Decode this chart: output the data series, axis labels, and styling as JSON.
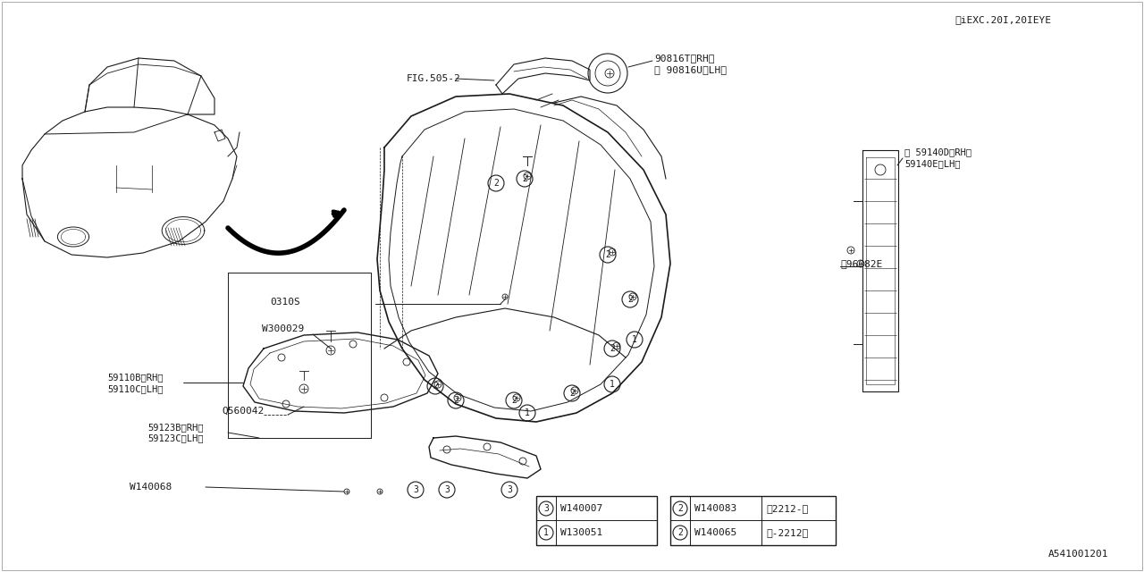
{
  "bg_color": "#ffffff",
  "line_color": "#1a1a1a",
  "corner_note": "※iEXC.20I,20IEYE",
  "part_id": "A541001201",
  "fig505_label": "FIG.505-2",
  "p90816T": "90816T〈RH〉",
  "p90816U": "※ 90816U〈LH〉",
  "p59140D": "※ 59140D〈RH〉",
  "p59140E": "59140E〈LH〉",
  "p96082E": "※96082E",
  "p0310S": "0310S",
  "pW300029": "W300029",
  "p59110B": "59110B〈RH〉",
  "p59110C": "59110C〈LH〉",
  "pQ560042": "Q560042",
  "p59123B": "59123B〈RH〉",
  "p59123C": "59123C〈LH〉",
  "pW140068": "W140068",
  "legend1": [
    {
      "num": "1",
      "code": "W130051"
    },
    {
      "num": "3",
      "code": "W140007"
    }
  ],
  "legend2": [
    {
      "num": "2",
      "code": "W140065",
      "range": "〈-2212〉"
    },
    {
      "num": "2",
      "code": "W140083",
      "range": "〈2212-〉"
    }
  ]
}
